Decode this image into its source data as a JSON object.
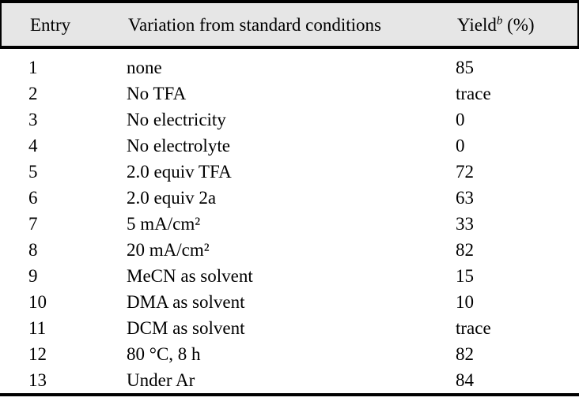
{
  "table": {
    "header": {
      "entry": "Entry",
      "variation": "Variation from standard conditions",
      "yield_base": "Yield",
      "yield_sup": "b",
      "yield_suffix": " (%)"
    },
    "rows": [
      {
        "entry": "1",
        "variation": "none",
        "yield": "85"
      },
      {
        "entry": "2",
        "variation": "No TFA",
        "yield": "trace"
      },
      {
        "entry": "3",
        "variation": "No electricity",
        "yield": "0"
      },
      {
        "entry": "4",
        "variation": "No electrolyte",
        "yield": "0"
      },
      {
        "entry": "5",
        "variation": "2.0 equiv TFA",
        "yield": "72"
      },
      {
        "entry": "6",
        "variation": "2.0 equiv 2a",
        "yield": "63"
      },
      {
        "entry": "7",
        "variation": "5 mA/cm²",
        "yield": "33"
      },
      {
        "entry": "8",
        "variation": "20 mA/cm²",
        "yield": "82"
      },
      {
        "entry": "9",
        "variation": "MeCN as solvent",
        "yield": "15"
      },
      {
        "entry": "10",
        "variation": "DMA as solvent",
        "yield": "10"
      },
      {
        "entry": "11",
        "variation": "DCM as solvent",
        "yield": "trace"
      },
      {
        "entry": "12",
        "variation": "80 °C, 8 h",
        "yield": "82"
      },
      {
        "entry": "13",
        "variation": "Under Ar",
        "yield": "84"
      }
    ]
  },
  "colors": {
    "header_bg": "#e6e6e6",
    "rule": "#000000",
    "text": "#000000"
  }
}
